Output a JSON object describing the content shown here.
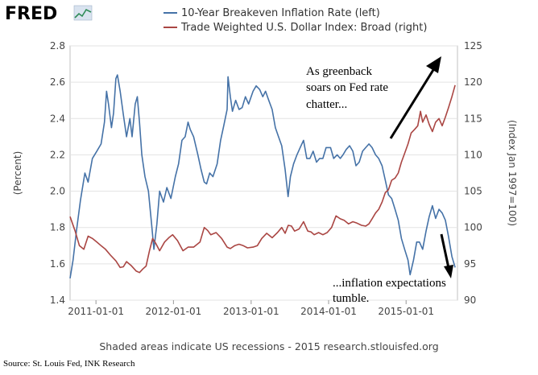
{
  "logo": {
    "text": "FRED"
  },
  "chart_data": {
    "type": "line",
    "series": [
      {
        "name": "10-Year Breakeven Inflation Rate (left)",
        "axis": "left",
        "color": "#4572a7",
        "points": [
          [
            "2010-09-01",
            1.52
          ],
          [
            "2010-09-15",
            1.62
          ],
          [
            "2010-10-01",
            1.78
          ],
          [
            "2010-10-20",
            1.95
          ],
          [
            "2010-11-10",
            2.1
          ],
          [
            "2010-11-25",
            2.05
          ],
          [
            "2010-12-15",
            2.18
          ],
          [
            "2011-01-05",
            2.22
          ],
          [
            "2011-01-25",
            2.26
          ],
          [
            "2011-02-10",
            2.38
          ],
          [
            "2011-02-20",
            2.55
          ],
          [
            "2011-03-01",
            2.48
          ],
          [
            "2011-03-15",
            2.35
          ],
          [
            "2011-03-25",
            2.43
          ],
          [
            "2011-04-05",
            2.62
          ],
          [
            "2011-04-12",
            2.64
          ],
          [
            "2011-04-25",
            2.55
          ],
          [
            "2011-05-10",
            2.42
          ],
          [
            "2011-05-25",
            2.3
          ],
          [
            "2011-06-10",
            2.4
          ],
          [
            "2011-06-20",
            2.3
          ],
          [
            "2011-07-05",
            2.48
          ],
          [
            "2011-07-15",
            2.52
          ],
          [
            "2011-07-25",
            2.38
          ],
          [
            "2011-08-05",
            2.2
          ],
          [
            "2011-08-20",
            2.08
          ],
          [
            "2011-09-05",
            2.0
          ],
          [
            "2011-09-20",
            1.82
          ],
          [
            "2011-10-01",
            1.68
          ],
          [
            "2011-10-15",
            1.82
          ],
          [
            "2011-10-28",
            2.0
          ],
          [
            "2011-11-15",
            1.94
          ],
          [
            "2011-12-01",
            2.02
          ],
          [
            "2011-12-20",
            1.96
          ],
          [
            "2012-01-10",
            2.08
          ],
          [
            "2012-01-25",
            2.15
          ],
          [
            "2012-02-10",
            2.28
          ],
          [
            "2012-02-25",
            2.3
          ],
          [
            "2012-03-10",
            2.38
          ],
          [
            "2012-03-20",
            2.34
          ],
          [
            "2012-04-05",
            2.3
          ],
          [
            "2012-04-25",
            2.2
          ],
          [
            "2012-05-10",
            2.12
          ],
          [
            "2012-05-25",
            2.05
          ],
          [
            "2012-06-05",
            2.04
          ],
          [
            "2012-06-20",
            2.1
          ],
          [
            "2012-07-05",
            2.08
          ],
          [
            "2012-07-25",
            2.15
          ],
          [
            "2012-08-10",
            2.28
          ],
          [
            "2012-08-25",
            2.36
          ],
          [
            "2012-09-10",
            2.45
          ],
          [
            "2012-09-14",
            2.63
          ],
          [
            "2012-09-25",
            2.52
          ],
          [
            "2012-10-05",
            2.44
          ],
          [
            "2012-10-20",
            2.5
          ],
          [
            "2012-11-05",
            2.45
          ],
          [
            "2012-11-20",
            2.46
          ],
          [
            "2012-12-05",
            2.52
          ],
          [
            "2012-12-20",
            2.48
          ],
          [
            "2013-01-10",
            2.55
          ],
          [
            "2013-01-25",
            2.58
          ],
          [
            "2013-02-10",
            2.56
          ],
          [
            "2013-02-25",
            2.52
          ],
          [
            "2013-03-10",
            2.55
          ],
          [
            "2013-03-25",
            2.5
          ],
          [
            "2013-04-10",
            2.45
          ],
          [
            "2013-04-25",
            2.35
          ],
          [
            "2013-05-10",
            2.3
          ],
          [
            "2013-05-25",
            2.25
          ],
          [
            "2013-06-10",
            2.12
          ],
          [
            "2013-06-24",
            1.97
          ],
          [
            "2013-07-05",
            2.08
          ],
          [
            "2013-07-20",
            2.15
          ],
          [
            "2013-08-05",
            2.2
          ],
          [
            "2013-08-20",
            2.24
          ],
          [
            "2013-09-05",
            2.28
          ],
          [
            "2013-09-20",
            2.18
          ],
          [
            "2013-10-05",
            2.18
          ],
          [
            "2013-10-20",
            2.22
          ],
          [
            "2013-11-05",
            2.16
          ],
          [
            "2013-11-20",
            2.18
          ],
          [
            "2013-12-05",
            2.18
          ],
          [
            "2013-12-20",
            2.24
          ],
          [
            "2014-01-10",
            2.24
          ],
          [
            "2014-01-25",
            2.18
          ],
          [
            "2014-02-10",
            2.2
          ],
          [
            "2014-02-25",
            2.18
          ],
          [
            "2014-03-10",
            2.2
          ],
          [
            "2014-03-25",
            2.23
          ],
          [
            "2014-04-10",
            2.25
          ],
          [
            "2014-04-25",
            2.22
          ],
          [
            "2014-05-10",
            2.14
          ],
          [
            "2014-05-25",
            2.16
          ],
          [
            "2014-06-10",
            2.22
          ],
          [
            "2014-06-25",
            2.24
          ],
          [
            "2014-07-10",
            2.26
          ],
          [
            "2014-07-25",
            2.24
          ],
          [
            "2014-08-10",
            2.2
          ],
          [
            "2014-08-25",
            2.18
          ],
          [
            "2014-09-10",
            2.14
          ],
          [
            "2014-09-25",
            2.06
          ],
          [
            "2014-10-10",
            1.98
          ],
          [
            "2014-10-25",
            1.96
          ],
          [
            "2014-11-10",
            1.9
          ],
          [
            "2014-11-25",
            1.84
          ],
          [
            "2014-12-10",
            1.74
          ],
          [
            "2014-12-25",
            1.68
          ],
          [
            "2015-01-10",
            1.62
          ],
          [
            "2015-01-20",
            1.54
          ],
          [
            "2015-02-05",
            1.62
          ],
          [
            "2015-02-20",
            1.72
          ],
          [
            "2015-03-05",
            1.72
          ],
          [
            "2015-03-20",
            1.68
          ],
          [
            "2015-04-05",
            1.78
          ],
          [
            "2015-04-20",
            1.86
          ],
          [
            "2015-05-05",
            1.92
          ],
          [
            "2015-05-20",
            1.85
          ],
          [
            "2015-06-05",
            1.9
          ],
          [
            "2015-06-20",
            1.88
          ],
          [
            "2015-07-05",
            1.84
          ],
          [
            "2015-07-20",
            1.75
          ],
          [
            "2015-08-05",
            1.64
          ],
          [
            "2015-08-20",
            1.58
          ]
        ]
      },
      {
        "name": "Trade Weighted U.S. Dollar Index: Broad (right)",
        "axis": "right",
        "color": "#aa4643",
        "points": [
          [
            "2010-09-01",
            101.5
          ],
          [
            "2010-09-25",
            99.5
          ],
          [
            "2010-10-15",
            97.5
          ],
          [
            "2010-11-05",
            97.0
          ],
          [
            "2010-11-25",
            98.8
          ],
          [
            "2010-12-15",
            98.5
          ],
          [
            "2011-01-05",
            98.0
          ],
          [
            "2011-01-25",
            97.5
          ],
          [
            "2011-02-15",
            97.0
          ],
          [
            "2011-03-10",
            96.2
          ],
          [
            "2011-04-05",
            95.4
          ],
          [
            "2011-04-25",
            94.5
          ],
          [
            "2011-05-10",
            94.6
          ],
          [
            "2011-05-25",
            95.3
          ],
          [
            "2011-06-15",
            94.8
          ],
          [
            "2011-07-10",
            94.0
          ],
          [
            "2011-07-25",
            93.8
          ],
          [
            "2011-08-10",
            94.3
          ],
          [
            "2011-08-25",
            94.7
          ],
          [
            "2011-09-10",
            96.8
          ],
          [
            "2011-09-25",
            98.5
          ],
          [
            "2011-10-10",
            97.8
          ],
          [
            "2011-10-28",
            96.8
          ],
          [
            "2011-11-20",
            98.0
          ],
          [
            "2011-12-10",
            98.6
          ],
          [
            "2011-12-28",
            99.0
          ],
          [
            "2012-01-20",
            98.2
          ],
          [
            "2012-02-15",
            96.8
          ],
          [
            "2012-03-10",
            97.3
          ],
          [
            "2012-04-05",
            97.3
          ],
          [
            "2012-05-05",
            98.0
          ],
          [
            "2012-05-25",
            100.0
          ],
          [
            "2012-06-10",
            99.6
          ],
          [
            "2012-06-25",
            99.0
          ],
          [
            "2012-07-20",
            99.3
          ],
          [
            "2012-08-15",
            98.5
          ],
          [
            "2012-09-10",
            97.3
          ],
          [
            "2012-09-25",
            97.1
          ],
          [
            "2012-10-15",
            97.5
          ],
          [
            "2012-11-05",
            97.7
          ],
          [
            "2012-11-25",
            97.5
          ],
          [
            "2012-12-15",
            97.2
          ],
          [
            "2013-01-10",
            97.3
          ],
          [
            "2013-01-30",
            97.5
          ],
          [
            "2013-02-20",
            98.5
          ],
          [
            "2013-03-15",
            99.2
          ],
          [
            "2013-04-10",
            98.6
          ],
          [
            "2013-05-05",
            99.3
          ],
          [
            "2013-05-25",
            100.0
          ],
          [
            "2013-06-10",
            99.2
          ],
          [
            "2013-06-25",
            100.3
          ],
          [
            "2013-07-10",
            100.2
          ],
          [
            "2013-07-25",
            99.5
          ],
          [
            "2013-08-15",
            99.8
          ],
          [
            "2013-09-05",
            100.8
          ],
          [
            "2013-09-25",
            99.5
          ],
          [
            "2013-10-10",
            99.4
          ],
          [
            "2013-10-25",
            99.0
          ],
          [
            "2013-11-15",
            99.3
          ],
          [
            "2013-12-05",
            99.0
          ],
          [
            "2013-12-25",
            99.3
          ],
          [
            "2014-01-15",
            100.0
          ],
          [
            "2014-02-05",
            101.6
          ],
          [
            "2014-02-25",
            101.2
          ],
          [
            "2014-03-15",
            101.0
          ],
          [
            "2014-04-05",
            100.5
          ],
          [
            "2014-04-25",
            100.8
          ],
          [
            "2014-05-15",
            100.6
          ],
          [
            "2014-06-05",
            100.3
          ],
          [
            "2014-06-25",
            100.2
          ],
          [
            "2014-07-10",
            100.5
          ],
          [
            "2014-07-25",
            101.2
          ],
          [
            "2014-08-10",
            102.0
          ],
          [
            "2014-08-25",
            102.5
          ],
          [
            "2014-09-10",
            103.5
          ],
          [
            "2014-09-25",
            104.8
          ],
          [
            "2014-10-10",
            105.2
          ],
          [
            "2014-10-25",
            106.5
          ],
          [
            "2014-11-10",
            106.8
          ],
          [
            "2014-11-25",
            107.5
          ],
          [
            "2014-12-10",
            109.0
          ],
          [
            "2014-12-25",
            110.2
          ],
          [
            "2015-01-10",
            111.5
          ],
          [
            "2015-01-25",
            113.0
          ],
          [
            "2015-02-10",
            113.5
          ],
          [
            "2015-02-25",
            114.0
          ],
          [
            "2015-03-10",
            116.0
          ],
          [
            "2015-03-20",
            114.5
          ],
          [
            "2015-04-05",
            115.5
          ],
          [
            "2015-04-20",
            114.2
          ],
          [
            "2015-05-05",
            113.2
          ],
          [
            "2015-05-20",
            114.5
          ],
          [
            "2015-06-05",
            115.0
          ],
          [
            "2015-06-20",
            114.0
          ],
          [
            "2015-07-05",
            115.2
          ],
          [
            "2015-07-20",
            116.5
          ],
          [
            "2015-08-05",
            118.0
          ],
          [
            "2015-08-20",
            119.6
          ]
        ]
      }
    ],
    "x_ticks": [
      "2011-01-01",
      "2012-01-01",
      "2013-01-01",
      "2014-01-01",
      "2015-01-01"
    ],
    "xlim": [
      "2010-09-01",
      "2015-08-31"
    ],
    "y_left": {
      "label": "(Percent)",
      "ylim": [
        1.4,
        2.8
      ],
      "ticks": [
        1.4,
        1.6,
        1.8,
        2.0,
        2.2,
        2.4,
        2.6,
        2.8
      ]
    },
    "y_right": {
      "label": "(Index Jan 1997=100)",
      "ylim": [
        90,
        125
      ],
      "ticks": [
        90,
        95,
        100,
        105,
        110,
        115,
        120,
        125
      ]
    },
    "grid": "horizontal",
    "legend_position": "top",
    "annotations": [
      {
        "lines": [
          "As greenback",
          "soars on Fed rate",
          "chatter..."
        ]
      },
      {
        "lines": [
          "...inflation expectations",
          "tumble."
        ]
      }
    ]
  },
  "footer": {
    "note": "Shaded areas indicate US recessions - 2015 research.stlouisfed.org",
    "source": "Source: St. Louis Fed, INK Research"
  }
}
